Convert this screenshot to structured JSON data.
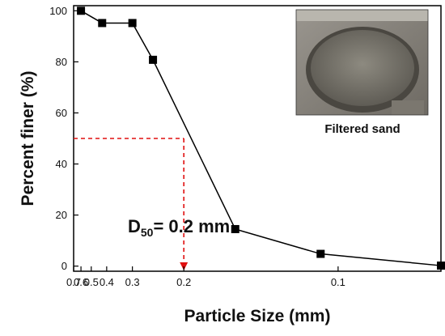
{
  "chart_data": {
    "type": "line",
    "xlabel": "Particle Size (mm)",
    "ylabel": "Percent finer (%)",
    "x_scale": "reciprocal",
    "xlim": [
      0.7,
      0.075
    ],
    "ylim": [
      -2,
      102
    ],
    "x_ticks": [
      0.7,
      0.6,
      0.5,
      0.4,
      0.3,
      0.2,
      0.1
    ],
    "x_tick_labels": [
      "0.7",
      "0.6",
      "0.5",
      "0.4",
      "0.3",
      "0.2",
      "0.1"
    ],
    "y_ticks": [
      0,
      20,
      40,
      60,
      80,
      100
    ],
    "y_tick_labels": [
      "0",
      "20",
      "40",
      "60",
      "80",
      "100"
    ],
    "grid": false,
    "legend": "none",
    "series": [
      {
        "x": [
          0.6,
          0.425,
          0.3,
          0.25,
          0.15,
          0.106,
          0.075
        ],
        "y": [
          100,
          95.2,
          95.2,
          80.8,
          14.5,
          4.8,
          0.2
        ],
        "color": "#000000",
        "marker": "square"
      }
    ],
    "annotations": {
      "d50": {
        "main": "D",
        "sub": "50",
        "rest": "= 0.2 mm",
        "x": 0.2,
        "y": 50,
        "color": "#e01010"
      },
      "inset_label": "Filtered sand"
    }
  }
}
